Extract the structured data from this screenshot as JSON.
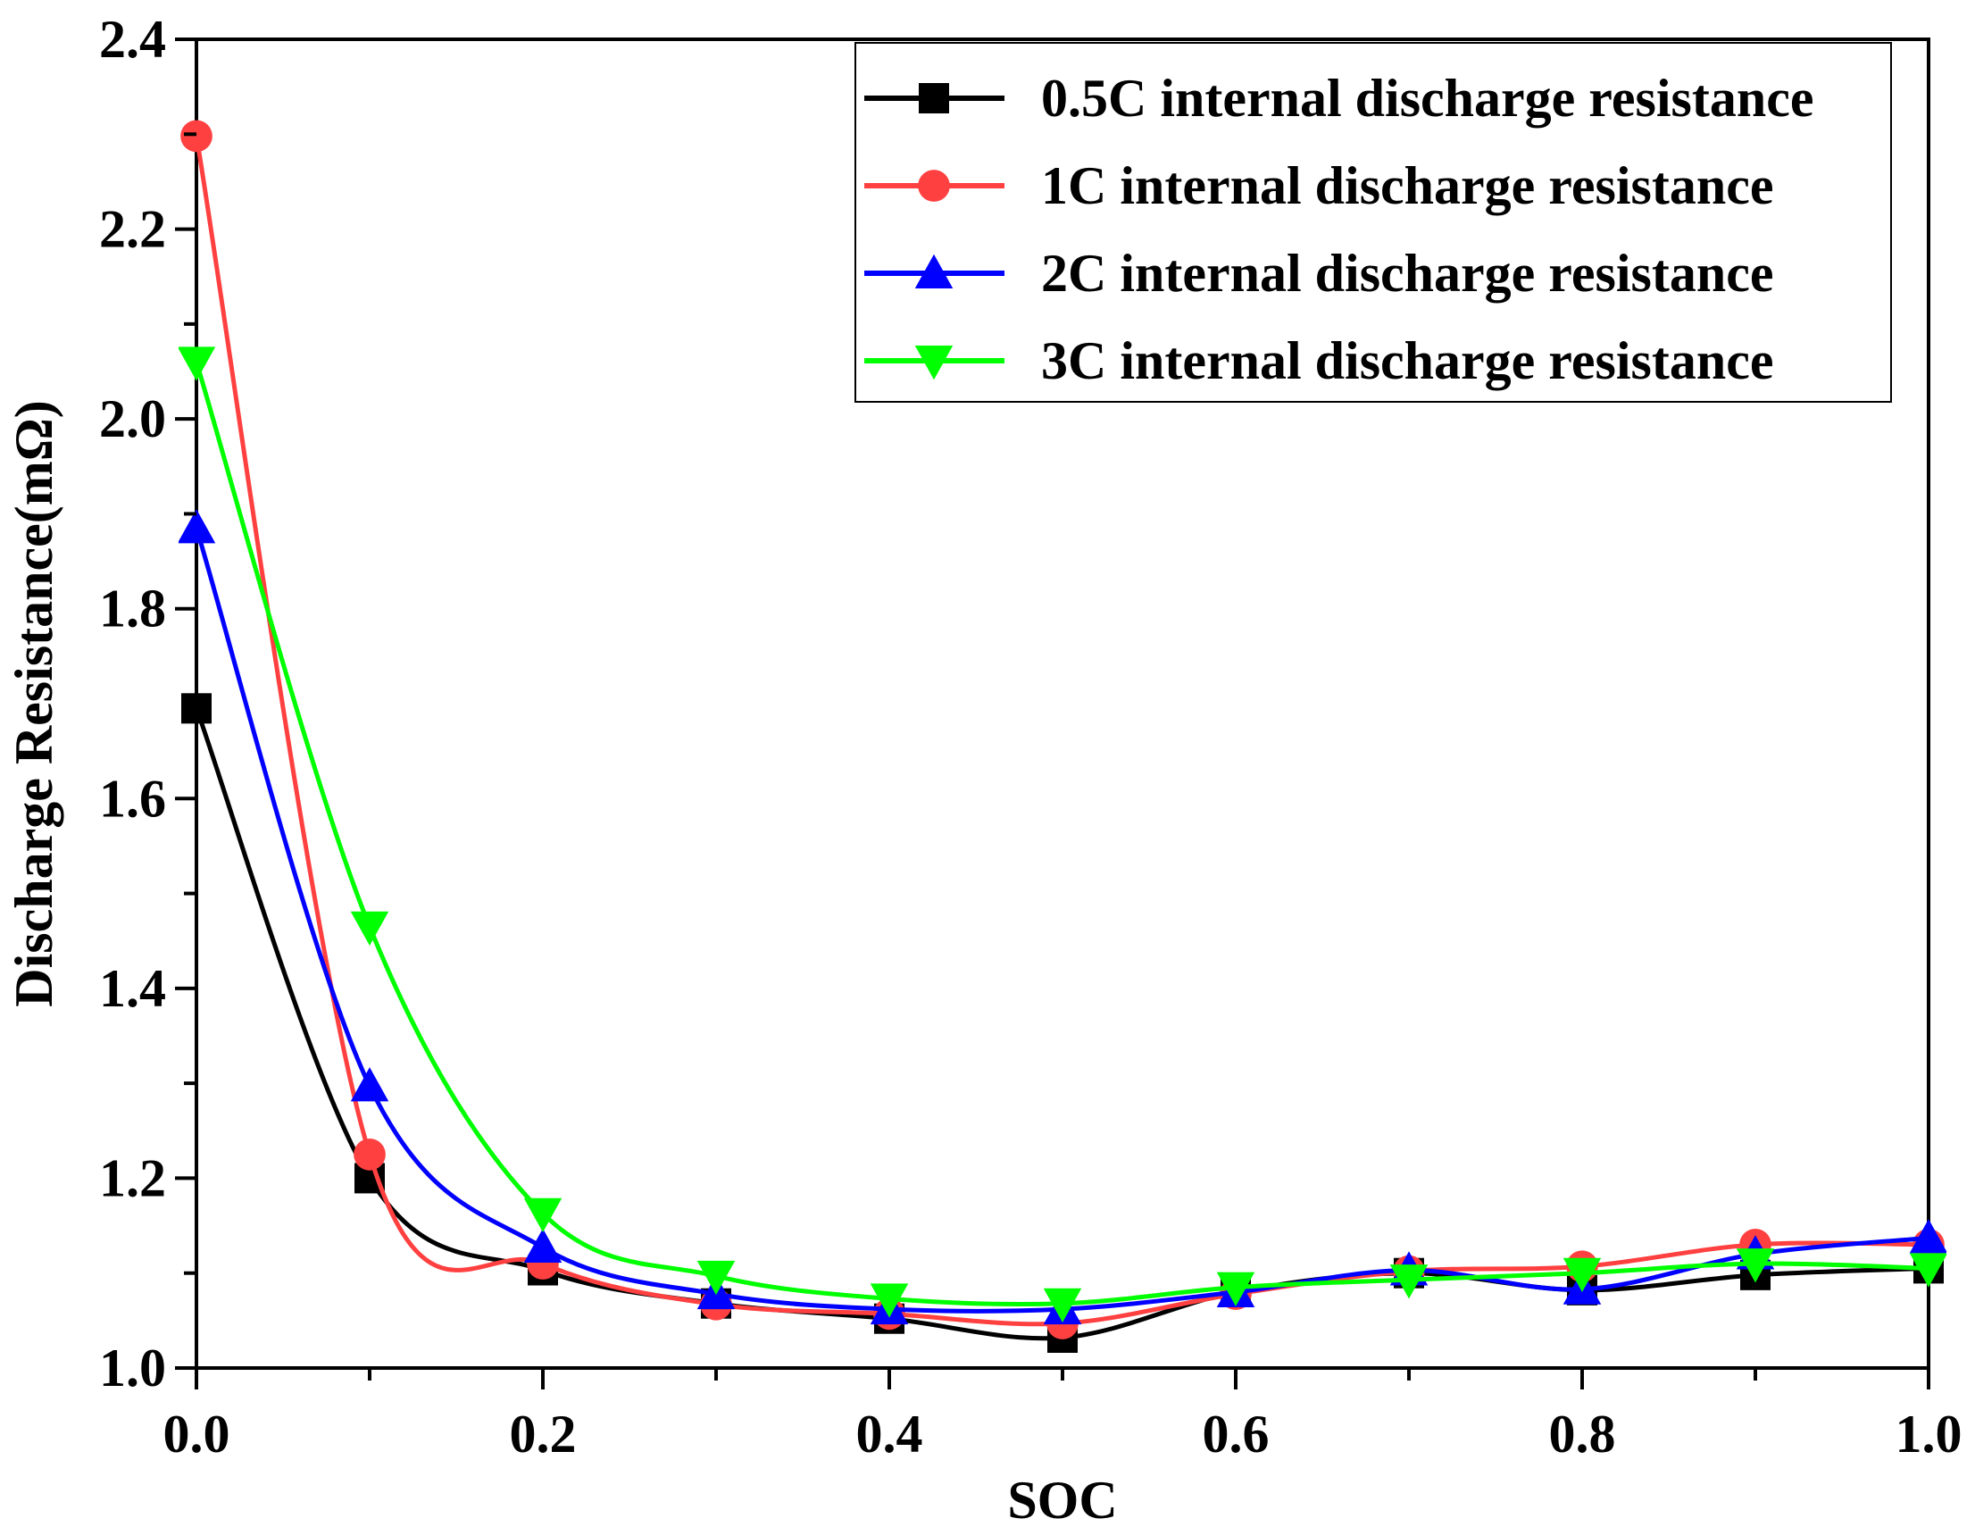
{
  "chart_data": {
    "type": "line",
    "title": "",
    "xlabel": "SOC",
    "ylabel": "Discharge Resistance(mΩ)",
    "xlim": [
      0.0,
      1.0
    ],
    "ylim": [
      1.0,
      2.4
    ],
    "x_ticks": [
      "0.0",
      "0.2",
      "0.4",
      "0.6",
      "0.8",
      "1.0"
    ],
    "y_ticks": [
      "1.0",
      "1.2",
      "1.4",
      "1.6",
      "1.8",
      "2.0",
      "2.2",
      "2.4"
    ],
    "x": [
      0.0,
      0.1,
      0.2,
      0.3,
      0.4,
      0.5,
      0.6,
      0.7,
      0.8,
      0.9,
      1.0
    ],
    "grid": false,
    "legend_position": "top-right",
    "series": [
      {
        "name": "0.5C internal discharge resistance",
        "color": "#000000",
        "marker": "square",
        "values": [
          1.695,
          1.2,
          1.103,
          1.068,
          1.052,
          1.032,
          1.08,
          1.1,
          1.082,
          1.098,
          1.105
        ]
      },
      {
        "name": "1C internal discharge resistance",
        "color": "#ff4040",
        "marker": "circle",
        "values": [
          2.298,
          1.225,
          1.11,
          1.067,
          1.057,
          1.047,
          1.078,
          1.102,
          1.107,
          1.13,
          1.13
        ]
      },
      {
        "name": "2C internal discharge resistance",
        "color": "#0000ff",
        "marker": "triangle-up",
        "values": [
          1.885,
          1.297,
          1.127,
          1.078,
          1.062,
          1.062,
          1.08,
          1.103,
          1.083,
          1.12,
          1.137
        ]
      },
      {
        "name": "3C internal discharge resistance",
        "color": "#00ff00",
        "marker": "triangle-down",
        "values": [
          2.06,
          1.465,
          1.163,
          1.097,
          1.073,
          1.068,
          1.085,
          1.093,
          1.1,
          1.11,
          1.105
        ]
      }
    ]
  }
}
